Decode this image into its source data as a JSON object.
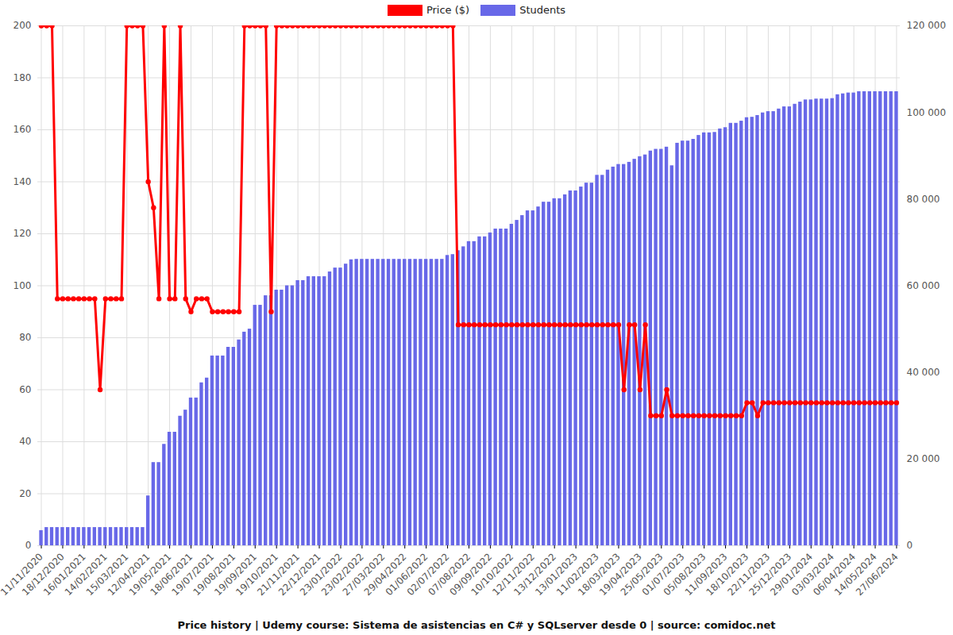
{
  "chart_data": {
    "type": "line",
    "title": "Price history | Udemy course: Sistema de asistencias en C# y SQLserver desde 0 | source: comidoc.net",
    "legend": "top",
    "grid": true,
    "categories": [
      "11/11/2020",
      null,
      null,
      null,
      "18/12/2020",
      null,
      null,
      null,
      "16/01/2021",
      null,
      null,
      null,
      "14/02/2021",
      null,
      null,
      null,
      "15/03/2021",
      null,
      null,
      null,
      "12/04/2021",
      null,
      null,
      null,
      "19/05/2021",
      null,
      null,
      null,
      "18/06/2021",
      null,
      null,
      null,
      "19/07/2021",
      null,
      null,
      null,
      "19/08/2021",
      null,
      null,
      null,
      "19/09/2021",
      null,
      null,
      null,
      "19/10/2021",
      null,
      null,
      null,
      "21/11/2021",
      null,
      null,
      null,
      "22/12/2021",
      null,
      null,
      null,
      "23/01/2022",
      null,
      null,
      null,
      "23/02/2022",
      null,
      null,
      null,
      "27/03/2022",
      null,
      null,
      null,
      "29/04/2022",
      null,
      null,
      null,
      "01/06/2022",
      null,
      null,
      null,
      "02/07/2022",
      null,
      null,
      null,
      "07/08/2022",
      null,
      null,
      null,
      "09/09/2022",
      null,
      null,
      null,
      "10/10/2022",
      null,
      null,
      null,
      "12/11/2022",
      null,
      null,
      null,
      "13/12/2022",
      null,
      null,
      null,
      "13/01/2023",
      null,
      null,
      null,
      "11/02/2023",
      null,
      null,
      null,
      "18/03/2023",
      null,
      null,
      null,
      "19/04/2023",
      null,
      null,
      null,
      "25/05/2023",
      null,
      null,
      null,
      "01/07/2023",
      null,
      null,
      null,
      "05/08/2023",
      null,
      null,
      null,
      "11/09/2023",
      null,
      null,
      null,
      "18/10/2023",
      null,
      null,
      null,
      "22/11/2023",
      null,
      null,
      null,
      "25/12/2023",
      null,
      null,
      null,
      "29/01/2024",
      null,
      null,
      null,
      "03/03/2024",
      null,
      null,
      null,
      "06/04/2024",
      null,
      null,
      null,
      "14/05/2024",
      null,
      null,
      null,
      "27/06/2024"
    ],
    "series": [
      {
        "name": "Students",
        "color": "#6868e8",
        "type": "bar",
        "axis": "y2",
        "values": [
          3500,
          4200,
          4200,
          4200,
          4200,
          4200,
          4200,
          4200,
          4200,
          4200,
          4200,
          4200,
          4200,
          4200,
          4200,
          4200,
          4200,
          4200,
          4200,
          4200,
          11500,
          19200,
          19200,
          23400,
          26200,
          26200,
          29900,
          31300,
          34100,
          34100,
          37600,
          38700,
          43800,
          43800,
          43800,
          45800,
          45800,
          47500,
          49300,
          50000,
          55500,
          55500,
          57700,
          57700,
          59000,
          59000,
          60000,
          60000,
          61200,
          61200,
          62100,
          62100,
          62100,
          62100,
          63200,
          64100,
          64100,
          65000,
          66000,
          66100,
          66100,
          66100,
          66100,
          66100,
          66100,
          66100,
          66100,
          66100,
          66100,
          66100,
          66100,
          66100,
          66100,
          66100,
          66100,
          66100,
          67000,
          67200,
          68100,
          69000,
          70200,
          70200,
          71300,
          71300,
          72200,
          73100,
          73100,
          73100,
          74200,
          75100,
          76200,
          77300,
          77300,
          78200,
          79300,
          79300,
          80100,
          80100,
          81000,
          81900,
          81900,
          82800,
          83700,
          83700,
          85500,
          85500,
          86700,
          87400,
          88000,
          88000,
          88500,
          89200,
          89800,
          90200,
          91100,
          91500,
          91500,
          92000,
          87700,
          92900,
          93400,
          93400,
          93800,
          94700,
          95300,
          95300,
          95400,
          96200,
          96500,
          97500,
          97500,
          98000,
          98800,
          98900,
          99300,
          99900,
          100200,
          100200,
          100800,
          101300,
          101300,
          101900,
          102400,
          102900,
          102900,
          103100,
          103100,
          103100,
          103200,
          104100,
          104300,
          104500,
          104500,
          104800,
          104800,
          104800,
          104800,
          104800,
          104800,
          104800,
          104800
        ]
      },
      {
        "name": "Price ($)",
        "color": "#ff0000",
        "type": "line",
        "marker": "circle",
        "values": [
          200,
          200,
          200,
          95,
          95,
          95,
          95,
          95,
          95,
          95,
          95,
          60,
          95,
          95,
          95,
          95,
          200,
          200,
          200,
          200,
          140,
          130,
          95,
          200,
          95,
          95,
          200,
          95,
          90,
          95,
          95,
          95,
          90,
          90,
          90,
          90,
          90,
          90,
          200,
          200,
          200,
          200,
          200,
          90,
          200,
          200,
          200,
          200,
          200,
          200,
          200,
          200,
          200,
          200,
          200,
          200,
          200,
          200,
          200,
          200,
          200,
          200,
          200,
          200,
          200,
          200,
          200,
          200,
          200,
          200,
          200,
          200,
          200,
          200,
          200,
          200,
          200,
          200,
          85,
          85,
          85,
          85,
          85,
          85,
          85,
          85,
          85,
          85,
          85,
          85,
          85,
          85,
          85,
          85,
          85,
          85,
          85,
          85,
          85,
          85,
          85,
          85,
          85,
          85,
          85,
          85,
          85,
          85,
          85,
          60,
          85,
          85,
          60,
          85,
          50,
          50,
          50,
          60,
          50,
          50,
          50,
          50,
          50,
          50,
          50,
          50,
          50,
          50,
          50,
          50,
          50,
          50,
          55,
          55,
          50,
          55,
          55,
          55,
          55,
          55,
          55,
          55,
          55,
          55,
          55,
          55,
          55,
          55,
          55,
          55,
          55,
          55,
          55,
          55,
          55,
          55,
          55,
          55,
          55,
          55,
          55
        ]
      }
    ],
    "ylim": [
      0,
      200
    ],
    "yticks": [
      0,
      20,
      40,
      60,
      80,
      100,
      120,
      140,
      160,
      180,
      200
    ],
    "y2lim": [
      0,
      120000
    ],
    "y2ticks": [
      0,
      {
        "value": 20000,
        "label": "20 000"
      },
      {
        "value": 40000,
        "label": "40 000"
      },
      {
        "value": 60000,
        "label": "60 000"
      },
      {
        "value": 80000,
        "label": "80 000"
      },
      {
        "value": 100000,
        "label": "100 000"
      },
      {
        "value": 120000,
        "label": "120 000"
      }
    ]
  }
}
